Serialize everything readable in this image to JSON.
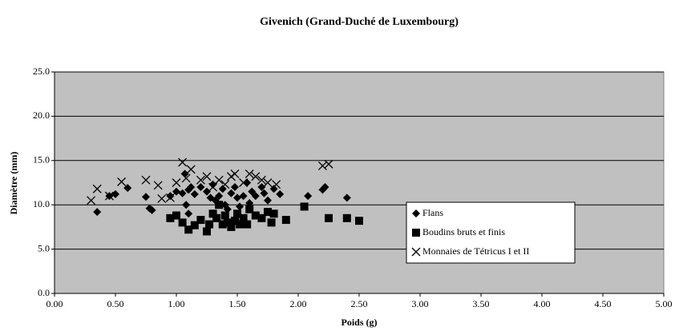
{
  "chart_data": {
    "type": "scatter",
    "title": "Givenich (Grand-Duché de Luxembourg)",
    "x_label": "Poids (g)",
    "y_label": "Diamètre (mm)",
    "xlim": [
      0,
      5
    ],
    "ylim": [
      0,
      25
    ],
    "xticks": [
      {
        "value": 0,
        "label": "0.00"
      },
      {
        "value": 0.5,
        "label": "0.50"
      },
      {
        "value": 1,
        "label": "1.00"
      },
      {
        "value": 1.5,
        "label": "1.50"
      },
      {
        "value": 2,
        "label": "2.00"
      },
      {
        "value": 2.5,
        "label": "2.50"
      },
      {
        "value": 3,
        "label": "3.00"
      },
      {
        "value": 3.5,
        "label": "3.50"
      },
      {
        "value": 4,
        "label": "4.00"
      },
      {
        "value": 4.5,
        "label": "4.50"
      },
      {
        "value": 5,
        "label": "5.00"
      }
    ],
    "yticks": [
      {
        "value": 0,
        "label": "0.0"
      },
      {
        "value": 5,
        "label": "5.0"
      },
      {
        "value": 10,
        "label": "10.0"
      },
      {
        "value": 15,
        "label": "15.0"
      },
      {
        "value": 20,
        "label": "20.0"
      },
      {
        "value": 25,
        "label": "25.0"
      }
    ],
    "grid": true,
    "legend": "right",
    "background": "#c0c0c0",
    "series": [
      {
        "name": "Flans",
        "marker": "diamond",
        "color": "#000000",
        "x": [
          0.35,
          0.45,
          0.5,
          0.6,
          0.75,
          0.78,
          0.8,
          0.95,
          1.0,
          1.05,
          1.07,
          1.08,
          1.1,
          1.12,
          1.15,
          1.2,
          1.25,
          1.28,
          1.3,
          1.32,
          1.35,
          1.38,
          1.4,
          1.42,
          1.45,
          1.48,
          1.5,
          1.52,
          1.55,
          1.58,
          1.6,
          1.62,
          1.65,
          1.7,
          1.72,
          1.75,
          1.8,
          1.85,
          2.08,
          2.2,
          2.22,
          2.4,
          1.1
        ],
        "values": [
          9.2,
          11.0,
          11.2,
          11.9,
          10.9,
          9.6,
          9.4,
          11.0,
          11.5,
          11.3,
          13.5,
          10.0,
          11.7,
          12.0,
          11.2,
          12.0,
          11.5,
          10.8,
          12.3,
          10.5,
          11.0,
          11.8,
          10.0,
          9.5,
          11.3,
          12.0,
          10.8,
          9.8,
          11.0,
          12.5,
          10.2,
          11.5,
          11.0,
          12.0,
          11.3,
          10.5,
          11.8,
          11.2,
          11.0,
          11.7,
          12.0,
          10.8,
          9.0
        ]
      },
      {
        "name": "Boudins bruts et finis",
        "marker": "square",
        "color": "#000000",
        "x": [
          0.95,
          1.0,
          1.05,
          1.1,
          1.15,
          1.2,
          1.25,
          1.27,
          1.3,
          1.33,
          1.35,
          1.38,
          1.4,
          1.42,
          1.45,
          1.48,
          1.5,
          1.52,
          1.55,
          1.58,
          1.6,
          1.65,
          1.7,
          1.75,
          1.78,
          1.9,
          2.05,
          2.25,
          2.4,
          2.5,
          1.8
        ],
        "values": [
          8.5,
          8.8,
          8.0,
          7.2,
          7.7,
          8.3,
          7.0,
          7.8,
          9.0,
          8.5,
          10.0,
          7.8,
          8.8,
          8.0,
          7.5,
          8.2,
          9.0,
          7.8,
          8.5,
          7.8,
          9.5,
          8.8,
          8.5,
          9.2,
          8.0,
          8.3,
          9.8,
          8.5,
          8.5,
          8.2,
          9.0
        ]
      },
      {
        "name": "Monnaies de Tétricus I et II",
        "marker": "cross",
        "color": "#000000",
        "x": [
          0.3,
          0.35,
          0.45,
          0.55,
          0.75,
          0.85,
          0.88,
          0.95,
          1.0,
          1.05,
          1.08,
          1.12,
          1.2,
          1.25,
          1.3,
          1.35,
          1.45,
          1.48,
          1.55,
          1.6,
          1.65,
          1.7,
          1.75,
          1.82,
          2.2,
          2.25,
          1.4
        ],
        "values": [
          10.5,
          11.8,
          11.0,
          12.6,
          12.8,
          12.2,
          10.7,
          10.8,
          12.5,
          14.8,
          13.0,
          14.0,
          12.8,
          13.2,
          12.0,
          12.8,
          13.2,
          13.5,
          12.5,
          13.5,
          13.2,
          12.8,
          12.5,
          12.3,
          14.4,
          14.6,
          12.3
        ]
      }
    ]
  }
}
